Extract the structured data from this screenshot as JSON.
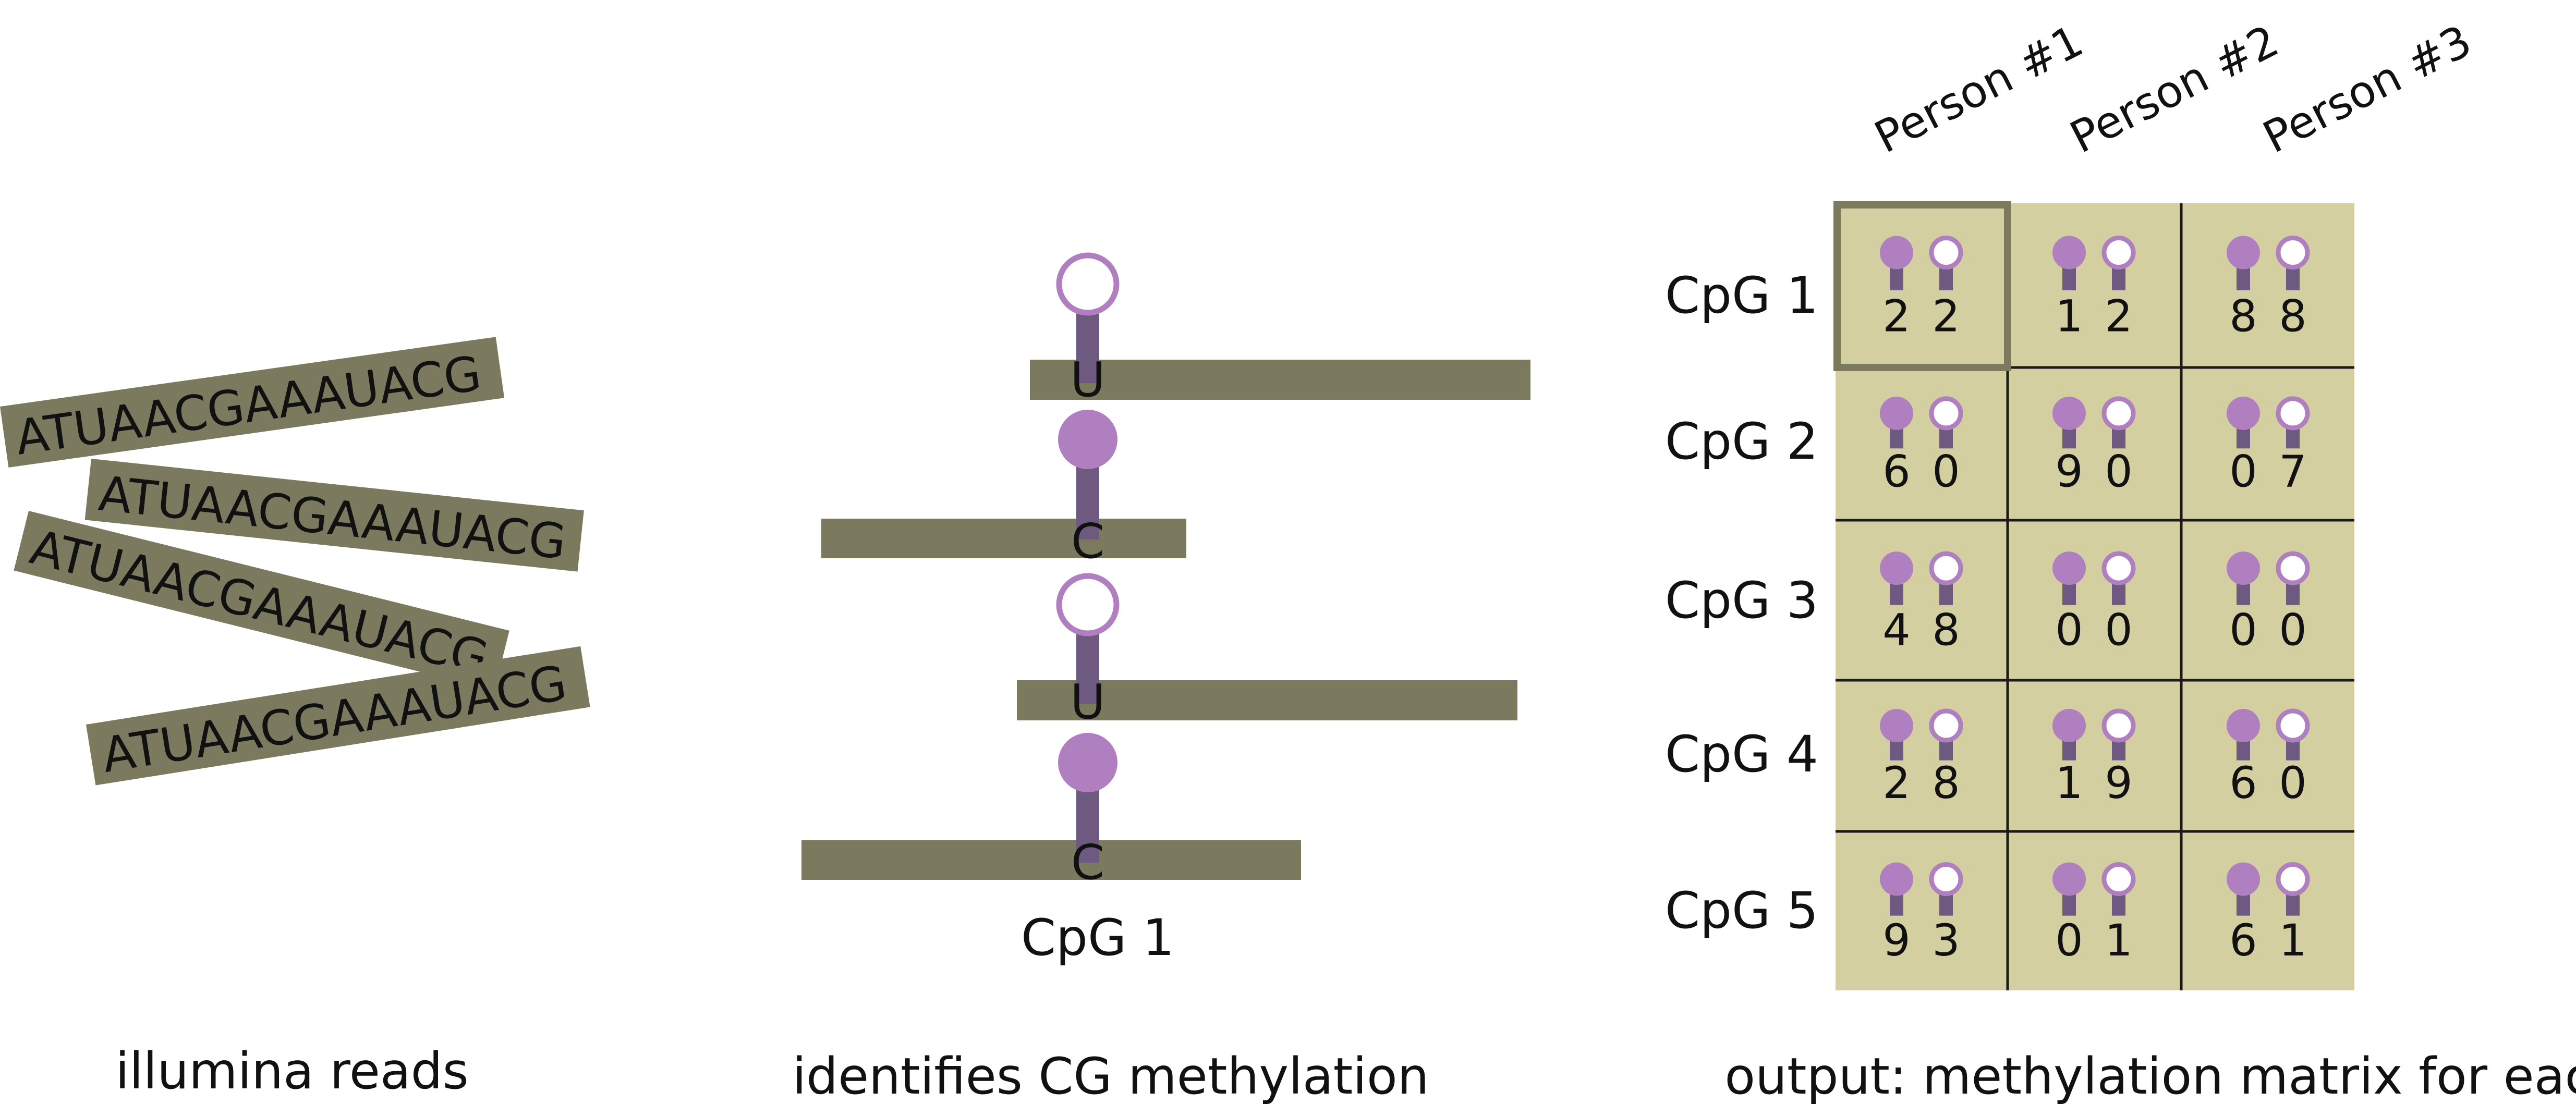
{
  "colors": {
    "read_bar": "#7b7a5e",
    "matrix_bg": "#d4cfa1",
    "grid_line": "#1a1a1a",
    "highlight_border": "#7b7a5e",
    "methylated": "#b07fc0",
    "stem": "#6e5a80",
    "text": "#111111"
  },
  "icons": {
    "methylated": "filled-lollipop-icon",
    "unmethylated": "open-lollipop-icon"
  },
  "panel_reads": {
    "caption": "illumina reads",
    "reads": [
      "ATUAACGAAAUACG",
      "ATUAACGAAAUACG",
      "ATUAACGAAAUACG",
      "ATUAACGAAAUACG"
    ]
  },
  "panel_methylation": {
    "caption": "identifies CG methylation",
    "site_label": "CpG 1",
    "reads": [
      {
        "base": "U",
        "status": "unmethylated"
      },
      {
        "base": "C",
        "status": "methylated"
      },
      {
        "base": "U",
        "status": "unmethylated"
      },
      {
        "base": "C",
        "status": "methylated"
      }
    ]
  },
  "panel_matrix": {
    "caption": "output: methylation matrix for each individual",
    "columns": [
      "Person #1",
      "Person #2",
      "Person #3"
    ],
    "rows": [
      {
        "label": "CpG 1",
        "cells": [
          [
            "2",
            "2"
          ],
          [
            "1",
            "2"
          ],
          [
            "8",
            "8"
          ]
        ]
      },
      {
        "label": "CpG 2",
        "cells": [
          [
            "6",
            "0"
          ],
          [
            "9",
            "0"
          ],
          [
            "0",
            "7"
          ]
        ]
      },
      {
        "label": "CpG 3",
        "cells": [
          [
            "4",
            "8"
          ],
          [
            "0",
            "0"
          ],
          [
            "0",
            "0"
          ]
        ]
      },
      {
        "label": "CpG 4",
        "cells": [
          [
            "2",
            "8"
          ],
          [
            "1",
            "9"
          ],
          [
            "6",
            "0"
          ]
        ]
      },
      {
        "label": "CpG 5",
        "cells": [
          [
            "9",
            "3"
          ],
          [
            "0",
            "1"
          ],
          [
            "6",
            "1"
          ]
        ]
      }
    ],
    "highlight": {
      "row": 0,
      "col": 0
    }
  }
}
